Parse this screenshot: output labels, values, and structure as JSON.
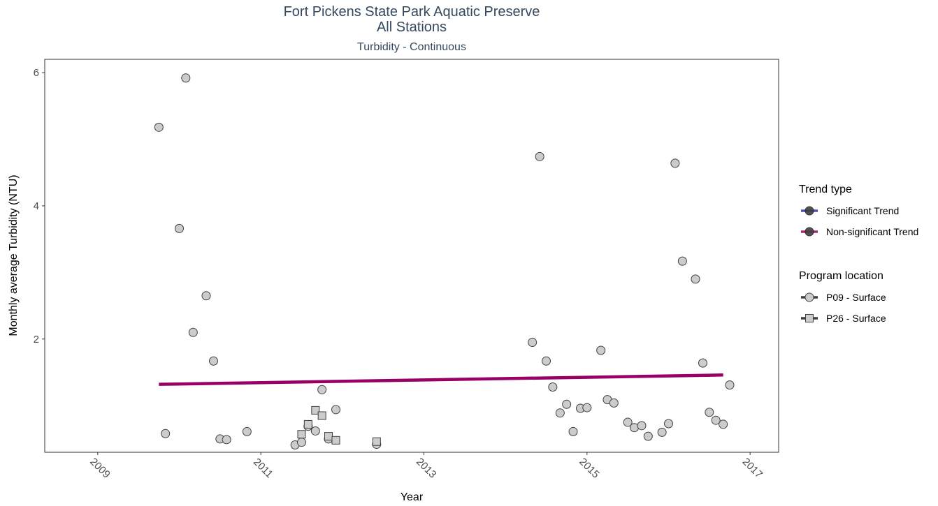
{
  "chart_data": {
    "type": "scatter",
    "title": "Fort Pickens State Park Aquatic Preserve",
    "title_line2": "All Stations",
    "subtitle": "Turbidity - Continuous",
    "xlabel": "Year",
    "ylabel": "Monthly average Turbidity (NTU)",
    "xlim": [
      2008.35,
      2017.35
    ],
    "ylim": [
      0.3,
      6.2
    ],
    "x_ticks": [
      2009,
      2011,
      2013,
      2015,
      2017
    ],
    "x_tick_labels": [
      "2009",
      "2011",
      "2013",
      "2015",
      "2017"
    ],
    "y_ticks": [
      2,
      4,
      6
    ],
    "y_tick_labels": [
      "2",
      "4",
      "6"
    ],
    "grid": false,
    "colors": {
      "point_fill": "#cccccc",
      "point_stroke": "#404040",
      "significant_trend": "#3333aa",
      "nonsignificant_trend": "#990066"
    },
    "trend": {
      "type": "Non-significant Trend",
      "x": [
        2009.75,
        2016.67
      ],
      "y": [
        1.32,
        1.46
      ]
    },
    "series": [
      {
        "name": "P09 - Surface",
        "marker": "circle",
        "points": [
          [
            2009.75,
            5.18
          ],
          [
            2009.83,
            0.58
          ],
          [
            2010.0,
            3.66
          ],
          [
            2010.08,
            5.92
          ],
          [
            2010.17,
            2.1
          ],
          [
            2010.33,
            2.65
          ],
          [
            2010.42,
            1.67
          ],
          [
            2010.5,
            0.5
          ],
          [
            2010.58,
            0.49
          ],
          [
            2010.83,
            0.61
          ],
          [
            2011.42,
            0.41
          ],
          [
            2011.5,
            0.45
          ],
          [
            2011.58,
            0.69
          ],
          [
            2011.67,
            0.62
          ],
          [
            2011.75,
            1.24
          ],
          [
            2011.83,
            0.5
          ],
          [
            2011.92,
            0.94
          ],
          [
            2012.42,
            0.42
          ],
          [
            2014.33,
            1.95
          ],
          [
            2014.42,
            4.74
          ],
          [
            2014.5,
            1.67
          ],
          [
            2014.58,
            1.28
          ],
          [
            2014.67,
            0.89
          ],
          [
            2014.75,
            1.02
          ],
          [
            2014.83,
            0.61
          ],
          [
            2014.92,
            0.96
          ],
          [
            2015.0,
            0.97
          ],
          [
            2015.17,
            1.83
          ],
          [
            2015.25,
            1.09
          ],
          [
            2015.33,
            1.04
          ],
          [
            2015.5,
            0.75
          ],
          [
            2015.58,
            0.67
          ],
          [
            2015.67,
            0.7
          ],
          [
            2015.75,
            0.54
          ],
          [
            2015.92,
            0.6
          ],
          [
            2016.0,
            0.73
          ],
          [
            2016.08,
            4.64
          ],
          [
            2016.17,
            3.17
          ],
          [
            2016.33,
            2.9
          ],
          [
            2016.42,
            1.64
          ],
          [
            2016.5,
            0.9
          ],
          [
            2016.58,
            0.78
          ],
          [
            2016.67,
            0.72
          ],
          [
            2016.75,
            1.31
          ]
        ]
      },
      {
        "name": "P26 - Surface",
        "marker": "square",
        "points": [
          [
            2011.5,
            0.57
          ],
          [
            2011.58,
            0.72
          ],
          [
            2011.67,
            0.93
          ],
          [
            2011.75,
            0.85
          ],
          [
            2011.83,
            0.54
          ],
          [
            2011.92,
            0.48
          ],
          [
            2012.42,
            0.46
          ]
        ]
      }
    ],
    "legend": {
      "placement": "right",
      "trend_title": "Trend type",
      "trend_items": [
        {
          "label": "Significant Trend",
          "color": "#3333aa"
        },
        {
          "label": "Non-significant Trend",
          "color": "#990066"
        }
      ],
      "program_title": "Program location",
      "program_items": [
        {
          "label": "P09 - Surface",
          "marker": "circle"
        },
        {
          "label": "P26 - Surface",
          "marker": "square"
        }
      ]
    }
  }
}
